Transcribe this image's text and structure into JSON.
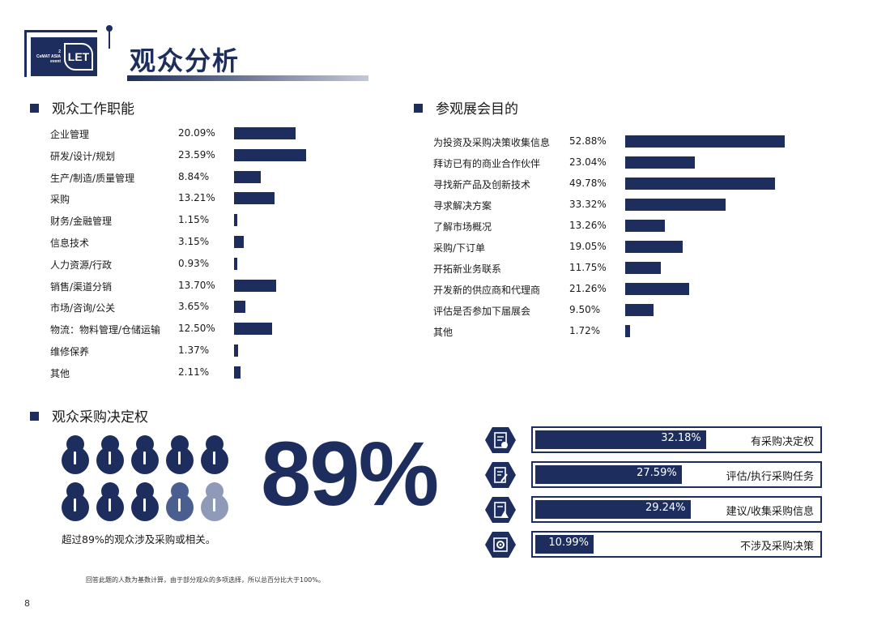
{
  "header": {
    "title": "观众分析",
    "logo_left_lines": [
      "2",
      "CeMAT ASIA",
      "event"
    ],
    "logo_right": "LET"
  },
  "section_functions": {
    "heading": "观众工作职能"
  },
  "section_purpose": {
    "heading": "参观展会目的"
  },
  "section_decision": {
    "heading": "观众采购决定权",
    "big_value": "89%",
    "note": "超过89%的观众涉及采购或相关。"
  },
  "footnote": "回答此题的人数为基数计算，由于部分观众的多项选择，所以总百分比大于100%。",
  "page_number": "8",
  "colors": {
    "navy": "#1d2e5e",
    "mid": "#4a5f8f",
    "light": "#8e9ab8"
  },
  "people_icons": [
    "full",
    "full",
    "full",
    "full",
    "full",
    "full",
    "full",
    "full",
    "mid",
    "light"
  ],
  "chart_data": [
    {
      "type": "bar",
      "title": "观众工作职能",
      "categories": [
        "企业管理",
        "研发/设计/规划",
        "生产/制造/质量管理",
        "采购",
        "财务/金融管理",
        "信息技术",
        "人力资源/行政",
        "销售/渠道分销",
        "市场/咨询/公关",
        "物流：物料管理/仓储运输",
        "维修保养",
        "其他"
      ],
      "values": [
        20.09,
        23.59,
        8.84,
        13.21,
        1.15,
        3.15,
        0.93,
        13.7,
        3.65,
        12.5,
        1.37,
        2.11
      ],
      "labels": [
        "20.09%",
        "23.59%",
        "8.84%",
        "13.21%",
        "1.15%",
        "3.15%",
        "0.93%",
        "13.70%",
        "3.65%",
        "12.50%",
        "1.37%",
        "2.11%"
      ],
      "orientation": "horizontal"
    },
    {
      "type": "bar",
      "title": "参观展会目的",
      "categories": [
        "为投资及采购决策收集信息",
        "拜访已有的商业合作伙伴",
        "寻找新产品及创新技术",
        "寻求解决方案",
        "了解市场概况",
        "采购/下订单",
        "开拓新业务联系",
        "开发新的供应商和代理商",
        "评估是否参加下届展会",
        "其他"
      ],
      "values": [
        52.88,
        23.04,
        49.78,
        33.32,
        13.26,
        19.05,
        11.75,
        21.26,
        9.5,
        1.72
      ],
      "labels": [
        "52.88%",
        "23.04%",
        "49.78%",
        "33.32%",
        "13.26%",
        "19.05%",
        "11.75%",
        "21.26%",
        "9.50%",
        "1.72%"
      ],
      "orientation": "horizontal"
    },
    {
      "type": "bar",
      "title": "观众采购决定权",
      "categories": [
        "有采购决定权",
        "评估/执行采购任务",
        "建议/收集采购信息",
        "不涉及采购决策"
      ],
      "values": [
        32.18,
        27.59,
        29.24,
        10.99
      ],
      "labels": [
        "32.18%",
        "27.59%",
        "29.24%",
        "10.99%"
      ],
      "icons": [
        "doc-check-icon",
        "doc-edit-icon",
        "doc-warning-icon",
        "gear-doc-icon"
      ],
      "orientation": "horizontal"
    }
  ]
}
